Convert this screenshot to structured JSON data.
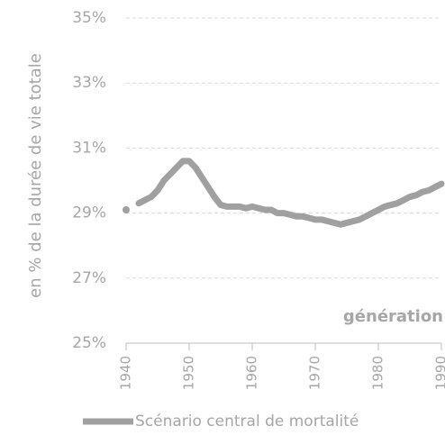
{
  "chart_data": {
    "type": "line",
    "y_label": "en % de la durée de vie totale",
    "annotation": "génération",
    "x": [
      1940,
      1941,
      1942,
      1943,
      1944,
      1945,
      1946,
      1947,
      1948,
      1949,
      1950,
      1951,
      1952,
      1953,
      1954,
      1955,
      1956,
      1957,
      1958,
      1959,
      1960,
      1961,
      1962,
      1963,
      1964,
      1965,
      1966,
      1967,
      1968,
      1969,
      1970,
      1971,
      1972,
      1973,
      1974,
      1975,
      1976,
      1977,
      1978,
      1979,
      1980,
      1981,
      1982,
      1983,
      1984,
      1985,
      1986,
      1987,
      1988,
      1989,
      1990
    ],
    "series": [
      {
        "name": "Scénario central de mortalité",
        "color": "#a0a0a0",
        "values": [
          29.1,
          null,
          29.3,
          29.4,
          29.5,
          29.7,
          30.0,
          30.2,
          30.4,
          30.6,
          30.6,
          30.4,
          30.1,
          29.8,
          29.5,
          29.25,
          29.2,
          29.2,
          29.2,
          29.15,
          29.2,
          29.15,
          29.1,
          29.1,
          29.0,
          29.0,
          28.95,
          28.9,
          28.9,
          28.85,
          28.8,
          28.8,
          28.75,
          28.7,
          28.65,
          28.7,
          28.75,
          28.8,
          28.9,
          29.0,
          29.1,
          29.2,
          29.25,
          29.3,
          29.4,
          29.5,
          29.55,
          29.65,
          29.7,
          29.8,
          29.9
        ]
      }
    ],
    "xlim": [
      1940,
      1990
    ],
    "xticks": [
      1940,
      1950,
      1960,
      1970,
      1980,
      1990
    ],
    "ylim": [
      25,
      35
    ],
    "yticks": [
      {
        "value": 25,
        "label": "25%"
      },
      {
        "value": 27,
        "label": "27%"
      },
      {
        "value": 29,
        "label": "29%"
      },
      {
        "value": 31,
        "label": "31%"
      },
      {
        "value": 33,
        "label": "33%"
      },
      {
        "value": 35,
        "label": "35%"
      }
    ],
    "grid": true
  }
}
